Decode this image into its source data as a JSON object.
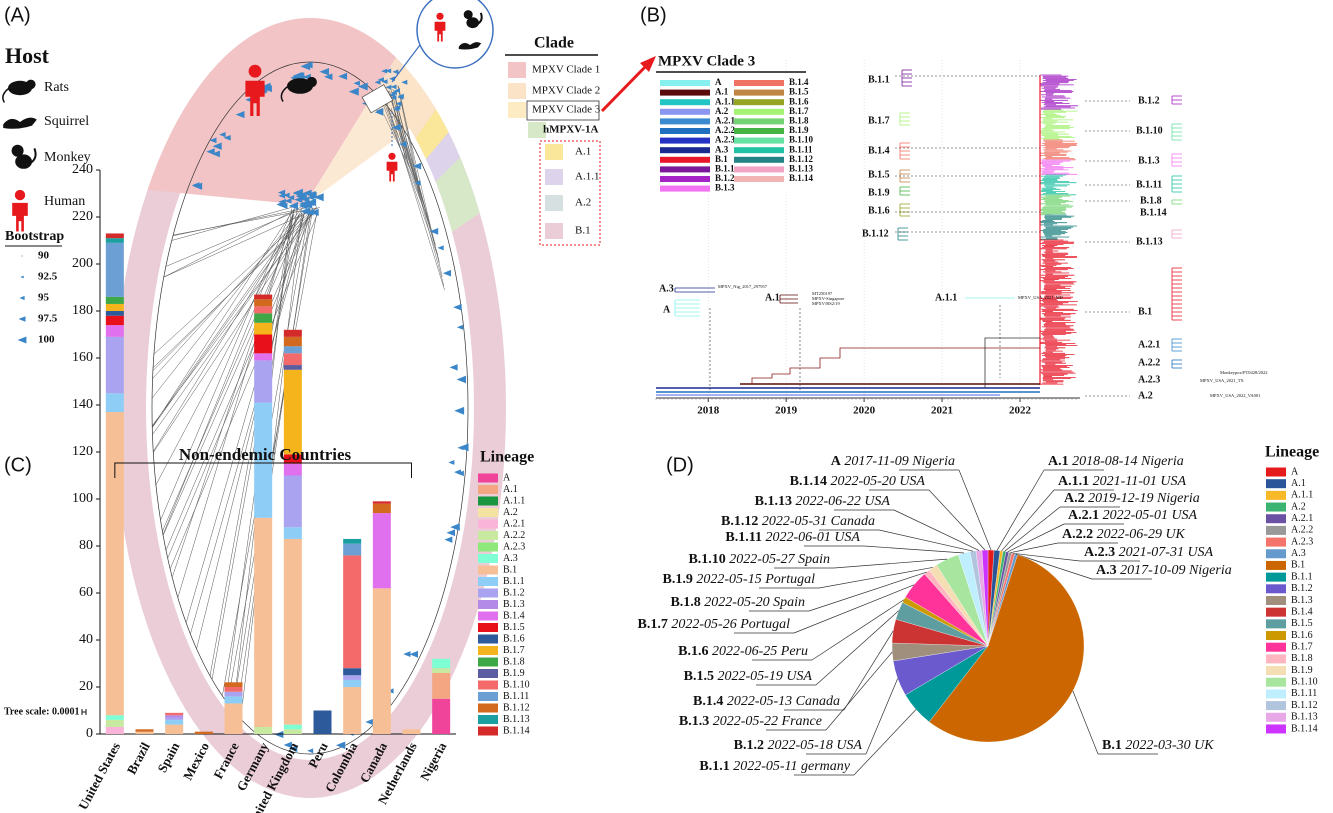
{
  "panel_labels": [
    "(A)",
    "(B)",
    "(C)",
    "(D)"
  ],
  "panel_a": {
    "host": {
      "title": "Host",
      "items": [
        "Rats",
        "Squirrel",
        "Monkey",
        "Human"
      ]
    },
    "bootstrap": {
      "title": "Bootstrap",
      "items": [
        "90",
        "92.5",
        "95",
        "97.5",
        "100"
      ]
    },
    "tree_scale": "Tree scale: 0.0001",
    "clade_legend": {
      "title": "Clade",
      "items": [
        {
          "name": "MPXV Clade 1",
          "color": "#f2c4c6"
        },
        {
          "name": "MPXV Clade 2",
          "color": "#fbe3c8"
        },
        {
          "name": "MPXV Clade 3",
          "color": "#fdebc4"
        },
        {
          "name": "hMPXV-1A",
          "color": "#d6e8c8"
        },
        {
          "name": "A.1",
          "color": "#fbe79a"
        },
        {
          "name": "A.1.1",
          "color": "#ddd3ea"
        },
        {
          "name": "A.2",
          "color": "#d6e0e0"
        },
        {
          "name": "B.1",
          "color": "#ebcdd8"
        }
      ]
    }
  },
  "panel_b": {
    "title": "MPXV Clade 3",
    "legend": [
      {
        "name": "A",
        "color": "#86f0ee"
      },
      {
        "name": "A.1",
        "color": "#5a0a0a"
      },
      {
        "name": "A.1.1",
        "color": "#22c4c4"
      },
      {
        "name": "A.2",
        "color": "#8a96f2"
      },
      {
        "name": "A.2.1",
        "color": "#3a8ad0"
      },
      {
        "name": "A.2.2",
        "color": "#2070c0"
      },
      {
        "name": "A.2.3",
        "color": "#2632c4"
      },
      {
        "name": "A.3",
        "color": "#1a2a90"
      },
      {
        "name": "B.1",
        "color": "#e8182a"
      },
      {
        "name": "B.1.1",
        "color": "#7a1a9a"
      },
      {
        "name": "B.1.2",
        "color": "#a424c4"
      },
      {
        "name": "B.1.3",
        "color": "#f274f2"
      },
      {
        "name": "B.1.4",
        "color": "#f07262"
      },
      {
        "name": "B.1.5",
        "color": "#c08444"
      },
      {
        "name": "B.1.6",
        "color": "#96a424"
      },
      {
        "name": "B.1.7",
        "color": "#a6f274"
      },
      {
        "name": "B.1.8",
        "color": "#74d474"
      },
      {
        "name": "B.1.9",
        "color": "#44b444"
      },
      {
        "name": "B.1.10",
        "color": "#66e2a4"
      },
      {
        "name": "B.1.11",
        "color": "#22c2a4"
      },
      {
        "name": "B.1.12",
        "color": "#228484"
      },
      {
        "name": "B.1.13",
        "color": "#f2a4c4"
      },
      {
        "name": "B.1.14",
        "color": "#f2b4b4"
      }
    ],
    "clade_labels": [
      "B.1.1",
      "B.1.7",
      "B.1.4",
      "B.1.5",
      "B.1.9",
      "B.1.6",
      "B.1.12",
      "A.3",
      "A",
      "A.1",
      "A.1.1",
      "B.1.2",
      "B.1.10",
      "B.1.3",
      "B.1.11",
      "B.1.8",
      "B.1.14",
      "B.1.13",
      "B.1",
      "A.2.1",
      "A.2.2",
      "A.2.3",
      "A.2"
    ],
    "tip_labels": [
      "MPXV_Nig_2017_297957",
      "MT250197",
      "MPXV-Singapore",
      "MPXV/RS2/19",
      "MPXV_USA_2021_MD",
      "Monkeypox/PT0428/2022",
      "MPXV_USA_2021_TX",
      "MPXV_USA_2022_VA001"
    ],
    "xlim": [
      2017.33,
      2022.77
    ],
    "xticks": [
      2018,
      2019,
      2020,
      2021,
      2022
    ]
  },
  "chart_data": [
    {
      "type": "bar",
      "stacked": true,
      "annotation": "Non-endemic Countries",
      "legend_title": "Lineage",
      "categories": [
        "United States",
        "Brazil",
        "Spain",
        "Mexico",
        "France",
        "Germany",
        "United Kingdom",
        "Peru",
        "Colombia",
        "Canada",
        "Netherlands",
        "Nigeria"
      ],
      "ylim": [
        0,
        240
      ],
      "yticks": [
        0,
        20,
        40,
        60,
        80,
        100,
        120,
        140,
        160,
        180,
        200,
        220,
        240
      ],
      "series": [
        {
          "name": "A",
          "color": "#f0449a",
          "values": [
            0,
            0,
            0,
            0,
            0,
            0,
            0,
            0,
            0,
            0,
            0,
            15
          ]
        },
        {
          "name": "A.1",
          "color": "#f4a582",
          "values": [
            0,
            0,
            0,
            0,
            0,
            0,
            0,
            0,
            0,
            0,
            0,
            11
          ]
        },
        {
          "name": "A.1.1",
          "color": "#1a9641",
          "values": [
            0,
            0,
            0,
            0,
            0,
            0,
            0,
            0,
            0,
            0,
            0,
            0
          ]
        },
        {
          "name": "A.2",
          "color": "#f3e2a0",
          "values": [
            0,
            0,
            0,
            0,
            0,
            0,
            0,
            0,
            0,
            0,
            0,
            0
          ]
        },
        {
          "name": "A.2.1",
          "color": "#fbb4d9",
          "values": [
            3,
            0,
            0,
            0,
            0,
            0,
            0,
            0,
            0,
            0,
            0,
            0
          ]
        },
        {
          "name": "A.2.2",
          "color": "#c7e9a0",
          "values": [
            3,
            0,
            0,
            0,
            0,
            3,
            2,
            0,
            0,
            0,
            0,
            2
          ]
        },
        {
          "name": "A.2.3",
          "color": "#8ee87a",
          "values": [
            0,
            0,
            0,
            0,
            0,
            0,
            0,
            0,
            0,
            0,
            0,
            0
          ]
        },
        {
          "name": "A.3",
          "color": "#7fffd4",
          "values": [
            2,
            0,
            0,
            0,
            0,
            0,
            2,
            0,
            0,
            0,
            0,
            4
          ]
        },
        {
          "name": "B.1",
          "color": "#f7bf95",
          "values": [
            129,
            1,
            4,
            0,
            13,
            89,
            79,
            0,
            20,
            62,
            2,
            0
          ]
        },
        {
          "name": "B.1.1",
          "color": "#8ecdf5",
          "values": [
            8,
            0,
            2,
            0,
            3,
            49,
            5,
            0,
            3,
            0,
            0,
            0
          ]
        },
        {
          "name": "B.1.2",
          "color": "#a9a3f0",
          "values": [
            24,
            0,
            1,
            0,
            2,
            18,
            22,
            0,
            2,
            0,
            0,
            0
          ]
        },
        {
          "name": "B.1.3",
          "color": "#b48ae8",
          "values": [
            0,
            0,
            1,
            0,
            0,
            0,
            0,
            0,
            0,
            0,
            0,
            0
          ]
        },
        {
          "name": "B.1.4",
          "color": "#e070ee",
          "values": [
            5,
            0,
            0,
            0,
            0,
            3,
            5,
            0,
            0,
            32,
            0,
            0
          ]
        },
        {
          "name": "B.1.5",
          "color": "#e8101a",
          "values": [
            4,
            0,
            0,
            0,
            0,
            8,
            4,
            0,
            0,
            0,
            0,
            0
          ]
        },
        {
          "name": "B.1.6",
          "color": "#2c5a9a",
          "values": [
            2,
            0,
            0,
            0,
            0,
            0,
            0,
            10,
            3,
            0,
            0,
            0
          ]
        },
        {
          "name": "B.1.7",
          "color": "#f5b41c",
          "values": [
            3,
            0,
            0,
            0,
            0,
            5,
            36,
            0,
            0,
            0,
            0,
            0
          ]
        },
        {
          "name": "B.1.8",
          "color": "#3da845",
          "values": [
            3,
            0,
            0,
            0,
            0,
            4,
            0,
            0,
            0,
            0,
            0,
            0
          ]
        },
        {
          "name": "B.1.9",
          "color": "#5c5ca0",
          "values": [
            0,
            0,
            0,
            0,
            0,
            0,
            2,
            0,
            0,
            0,
            0,
            0
          ]
        },
        {
          "name": "B.1.10",
          "color": "#f46a6a",
          "values": [
            0,
            0,
            1,
            0,
            2,
            3,
            5,
            0,
            48,
            0,
            0,
            0
          ]
        },
        {
          "name": "B.1.11",
          "color": "#6c9fd4",
          "values": [
            23,
            0,
            0,
            0,
            0,
            0,
            3,
            0,
            5,
            0,
            0,
            0
          ]
        },
        {
          "name": "B.1.12",
          "color": "#d2691e",
          "values": [
            0,
            1,
            0,
            1,
            2,
            3,
            4,
            0,
            0,
            4,
            0,
            0
          ]
        },
        {
          "name": "B.1.13",
          "color": "#1aa0a0",
          "values": [
            2,
            0,
            0,
            0,
            0,
            0,
            0,
            0,
            2,
            0,
            0,
            0
          ]
        },
        {
          "name": "B.1.14",
          "color": "#d42a2a",
          "values": [
            2,
            0,
            0,
            0,
            0,
            2,
            3,
            0,
            0,
            1,
            0,
            0
          ]
        }
      ]
    },
    {
      "type": "pie",
      "legend_title": "Lineage",
      "categories": [
        "A",
        "A.1",
        "A.1.1",
        "A.2",
        "A.2.1",
        "A.2.2",
        "A.2.3",
        "A.3",
        "B.1",
        "B.1.1",
        "B.1.2",
        "B.1.3",
        "B.1.4",
        "B.1.5",
        "B.1.6",
        "B.1.7",
        "B.1.8",
        "B.1.9",
        "B.1.10",
        "B.1.11",
        "B.1.12",
        "B.1.13",
        "B.1.14"
      ],
      "details": [
        "2017-11-09 Nigeria",
        "2018-08-14 Nigeria",
        "2021-11-01 USA",
        "2019-12-19 Nigeria",
        "2022-05-01 USA",
        "2022-06-29 UK",
        "2021-07-31 USA",
        "2017-10-09 Nigeria",
        "2022-03-30 UK",
        "2022-05-11 germany",
        "2022-05-18 USA",
        "2022-05-22 France",
        "2022-05-13 Canada",
        "2022-05-19 USA",
        "2022-06-25 Peru",
        "2022-05-26 Portugal",
        "2022-05-20 Spain",
        "2022-05-15 Portugal",
        "2022-05-27 Spain",
        "2022-06-01 USA",
        "2022-05-31 Canada",
        "2022-06-22 USA",
        "2022-05-20 USA"
      ],
      "values": [
        1,
        1,
        0.5,
        0.5,
        0.5,
        0.5,
        0.5,
        0.5,
        55.5,
        6,
        6,
        3,
        4,
        3,
        1,
        5,
        1,
        1.5,
        4,
        2,
        1,
        1,
        1
      ],
      "colors": [
        "#e41a1c",
        "#2a5699",
        "#f7b928",
        "#3cb371",
        "#6a51a3",
        "#999999",
        "#f4736a",
        "#6699cc",
        "#cc6600",
        "#009999",
        "#6a5acd",
        "#a08f7d",
        "#cc3333",
        "#5f9ea0",
        "#cc9900",
        "#ff3399",
        "#ffb6c1",
        "#f5deb3",
        "#a8e6a0",
        "#bfefff",
        "#b0c4de",
        "#e6a8e6",
        "#cc33ff"
      ]
    }
  ]
}
